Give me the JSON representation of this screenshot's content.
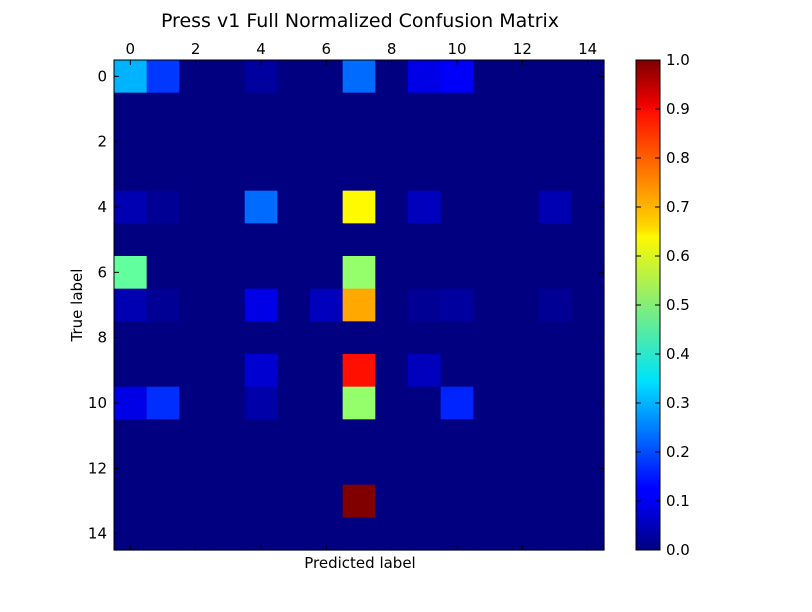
{
  "chart_data": {
    "type": "heatmap",
    "title": "Press v1 Full Normalized Confusion Matrix",
    "xlabel": "Predicted label",
    "ylabel": "True label",
    "x_ticks": [
      0,
      2,
      4,
      6,
      8,
      10,
      12,
      14
    ],
    "y_ticks": [
      0,
      2,
      4,
      6,
      8,
      10,
      12,
      14
    ],
    "colormap": "jet",
    "colorbar": {
      "range": [
        0.0,
        1.0
      ],
      "ticks": [
        "0.0",
        "0.1",
        "0.2",
        "0.3",
        "0.4",
        "0.5",
        "0.6",
        "0.7",
        "0.8",
        "0.9",
        "1.0"
      ]
    },
    "matrix": [
      [
        0.3,
        0.18,
        0,
        0,
        0.03,
        0,
        0,
        0.23,
        0,
        0.1,
        0.12,
        0,
        0,
        0,
        0
      ],
      [
        0,
        0,
        0,
        0,
        0,
        0,
        0,
        0,
        0,
        0,
        0,
        0,
        0,
        0,
        0
      ],
      [
        0,
        0,
        0,
        0,
        0,
        0,
        0,
        0,
        0,
        0,
        0,
        0,
        0,
        0,
        0
      ],
      [
        0,
        0,
        0,
        0,
        0,
        0,
        0,
        0,
        0,
        0,
        0,
        0,
        0,
        0,
        0
      ],
      [
        0.05,
        0.02,
        0,
        0,
        0.23,
        0,
        0,
        0.63,
        0,
        0.06,
        0,
        0,
        0,
        0.05,
        0
      ],
      [
        0,
        0,
        0,
        0,
        0,
        0,
        0,
        0,
        0,
        0,
        0,
        0,
        0,
        0,
        0
      ],
      [
        0.47,
        0,
        0,
        0,
        0,
        0,
        0,
        0.52,
        0,
        0,
        0,
        0,
        0,
        0,
        0
      ],
      [
        0.05,
        0.02,
        0,
        0,
        0.1,
        0,
        0.06,
        0.71,
        0,
        0.02,
        0.03,
        0,
        0,
        0.02,
        0
      ],
      [
        0,
        0,
        0,
        0,
        0,
        0,
        0,
        0,
        0,
        0,
        0,
        0,
        0,
        0,
        0
      ],
      [
        0,
        0,
        0,
        0,
        0.08,
        0,
        0,
        0.86,
        0,
        0.06,
        0,
        0,
        0,
        0,
        0
      ],
      [
        0.1,
        0.17,
        0,
        0,
        0.04,
        0,
        0,
        0.52,
        0,
        0,
        0.16,
        0,
        0,
        0,
        0
      ],
      [
        0,
        0,
        0,
        0,
        0,
        0,
        0,
        0,
        0,
        0,
        0,
        0,
        0,
        0,
        0
      ],
      [
        0,
        0,
        0,
        0,
        0,
        0,
        0,
        0,
        0,
        0,
        0,
        0,
        0,
        0,
        0
      ],
      [
        0,
        0,
        0,
        0,
        0,
        0,
        0,
        1.0,
        0,
        0,
        0,
        0,
        0,
        0,
        0
      ],
      [
        0,
        0,
        0,
        0,
        0,
        0,
        0,
        0,
        0,
        0,
        0,
        0,
        0,
        0,
        0
      ]
    ]
  }
}
